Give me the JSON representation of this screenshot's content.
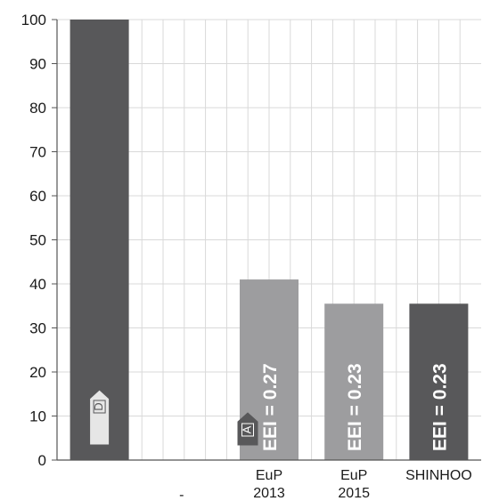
{
  "chart_data": {
    "type": "bar",
    "categories": [
      {
        "label_lines": [
          ""
        ],
        "sublabel": ""
      },
      {
        "label_lines": [
          ""
        ],
        "sublabel": "-"
      },
      {
        "label_lines": [
          "EuP",
          "2013"
        ],
        "sublabel": ""
      },
      {
        "label_lines": [
          "EuP",
          "2015"
        ],
        "sublabel": ""
      },
      {
        "label_lines": [
          "SHINHOO"
        ],
        "sublabel": ""
      }
    ],
    "values": [
      100,
      0,
      41,
      35.5,
      35.5
    ],
    "bar_colors": [
      "#58585a",
      "#58585a",
      "#9d9d9f",
      "#9d9d9f",
      "#58585a"
    ],
    "bar_labels": [
      "",
      "",
      "EEI = 0.27",
      "EEI = 0.23",
      "EEI = 0.23"
    ],
    "badges": [
      {
        "category_index": 0,
        "letter": "D",
        "fill": "#e6e6e6",
        "stroke": "#58585a",
        "text_color": "#58585a"
      },
      {
        "category_index": 2,
        "letter": "A",
        "fill": "#58585a",
        "stroke": "#58585a",
        "text_color": "#ffffff"
      }
    ],
    "ylim": [
      0,
      100
    ],
    "yticks": [
      "0",
      "10",
      "20",
      "30",
      "40",
      "50",
      "60",
      "70",
      "80",
      "90",
      "100"
    ],
    "grid": true,
    "title": "",
    "xlabel": "",
    "ylabel": ""
  }
}
